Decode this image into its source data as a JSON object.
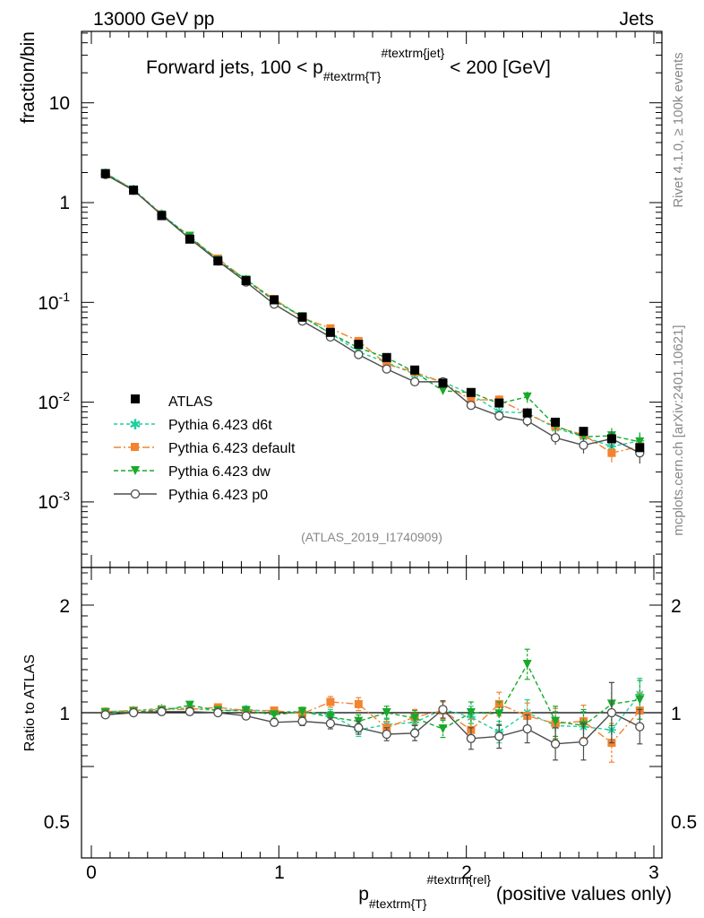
{
  "header": {
    "left": "13000 GeV pp",
    "right": "Jets"
  },
  "plot_title": {
    "pre": "Forward jets, 100 < p",
    "sub": "#textrm{T}",
    "sup": "#textrm{jet}",
    "post": " < 200 [GeV]"
  },
  "side_labels": {
    "rivet": "Rivet 4.1.0, ≥ 100k events",
    "mcplots": "mcplots.cern.ch [arXiv:2401.10621]"
  },
  "analysis_id": "(ATLAS_2019_I1740909)",
  "x_axis": {
    "pre": "p",
    "sub": "#textrm{T}",
    "sup": "#textrm{rel}",
    "post": " (positive values only)",
    "ticks": [
      "0",
      "1",
      "2",
      "3"
    ]
  },
  "main_axis": {
    "ylabel": "fraction/bin",
    "ticks": [
      {
        "base": "10",
        "exp": "-3"
      },
      {
        "base": "10",
        "exp": "-2"
      },
      {
        "base": "10",
        "exp": "-1"
      },
      {
        "base": "1",
        "exp": ""
      },
      {
        "base": "10",
        "exp": ""
      }
    ]
  },
  "ratio_axis": {
    "ylabel": "Ratio to ATLAS",
    "ticks": [
      "0.5",
      "1",
      "2"
    ],
    "ticks_right": [
      "0.5",
      "1",
      "2"
    ]
  },
  "legend": [
    {
      "label": "ATLAS",
      "color": "#000000"
    },
    {
      "label": "Pythia 6.423 d6t",
      "color": "#1fcf9e"
    },
    {
      "label": "Pythia 6.423 default",
      "color": "#f28330"
    },
    {
      "label": "Pythia 6.423 dw",
      "color": "#1aa82a"
    },
    {
      "label": "Pythia 6.423 p0",
      "color": "#4d4d4d"
    }
  ],
  "chart_data": [
    {
      "type": "line",
      "title": "Forward jets, 100 < p_T^jet < 200 [GeV]",
      "xlabel": "p_T^rel (positive values only)",
      "ylabel": "fraction/bin",
      "yscale": "log",
      "xlim": [
        -0.05,
        3.05
      ],
      "ylim": [
        0.00025,
        50
      ],
      "x": [
        0.075,
        0.225,
        0.375,
        0.525,
        0.675,
        0.825,
        0.975,
        1.125,
        1.275,
        1.425,
        1.575,
        1.725,
        1.875,
        2.025,
        2.175,
        2.325,
        2.475,
        2.625,
        2.775,
        2.925
      ],
      "series": [
        {
          "name": "ATLAS",
          "values": [
            1.95,
            1.33,
            0.74,
            0.43,
            0.26,
            0.165,
            0.106,
            0.071,
            0.05,
            0.038,
            0.028,
            0.021,
            0.0155,
            0.0125,
            0.0098,
            0.0078,
            0.0063,
            0.0051,
            0.0043,
            0.0035
          ]
        },
        {
          "name": "Pythia 6.423 d6t",
          "values": [
            1.98,
            1.36,
            0.77,
            0.45,
            0.265,
            0.17,
            0.107,
            0.072,
            0.049,
            0.032,
            0.025,
            0.019,
            0.016,
            0.012,
            0.008,
            0.0078,
            0.0055,
            0.0045,
            0.0036,
            0.0041
          ]
        },
        {
          "name": "Pythia 6.423 default",
          "values": [
            1.97,
            1.35,
            0.76,
            0.44,
            0.275,
            0.168,
            0.108,
            0.07,
            0.055,
            0.041,
            0.024,
            0.02,
            0.0158,
            0.0105,
            0.0106,
            0.0076,
            0.0057,
            0.0047,
            0.0031,
            0.0036
          ]
        },
        {
          "name": "Pythia 6.423 dw",
          "values": [
            1.96,
            1.34,
            0.75,
            0.46,
            0.265,
            0.168,
            0.104,
            0.072,
            0.049,
            0.035,
            0.028,
            0.02,
            0.013,
            0.0125,
            0.0097,
            0.0113,
            0.0058,
            0.0045,
            0.0046,
            0.004
          ]
        },
        {
          "name": "Pythia 6.423 p0",
          "values": [
            1.91,
            1.33,
            0.75,
            0.435,
            0.26,
            0.16,
            0.096,
            0.065,
            0.045,
            0.03,
            0.0215,
            0.016,
            0.016,
            0.0093,
            0.0073,
            0.0065,
            0.0044,
            0.0037,
            0.0043,
            0.0031
          ]
        }
      ]
    },
    {
      "type": "line",
      "title": "",
      "xlabel": "p_T^rel (positive values only)",
      "ylabel": "Ratio to ATLAS",
      "ylim": [
        0.35,
        2.35
      ],
      "x": [
        0.075,
        0.225,
        0.375,
        0.525,
        0.675,
        0.825,
        0.975,
        1.125,
        1.275,
        1.425,
        1.575,
        1.725,
        1.875,
        2.025,
        2.175,
        2.325,
        2.475,
        2.625,
        2.775,
        2.925
      ],
      "series": [
        {
          "name": "Pythia 6.423 d6t",
          "values": [
            1.01,
            1.02,
            1.04,
            1.04,
            1.02,
            1.03,
            1.01,
            1.01,
            0.98,
            0.84,
            0.89,
            0.91,
            1.03,
            0.96,
            0.82,
            1.0,
            0.88,
            0.87,
            0.84,
            1.17
          ],
          "errors": [
            0.02,
            0.02,
            0.02,
            0.02,
            0.02,
            0.03,
            0.03,
            0.04,
            0.05,
            0.06,
            0.06,
            0.06,
            0.08,
            0.1,
            0.1,
            0.12,
            0.13,
            0.14,
            0.15,
            0.15
          ]
        },
        {
          "name": "Pythia 6.423 default",
          "values": [
            1.01,
            1.02,
            1.03,
            1.03,
            1.05,
            1.02,
            1.02,
            0.99,
            1.1,
            1.08,
            0.86,
            0.96,
            1.02,
            0.84,
            1.08,
            0.97,
            0.9,
            0.92,
            0.72,
            1.02
          ],
          "errors": [
            0.02,
            0.02,
            0.02,
            0.02,
            0.02,
            0.03,
            0.03,
            0.04,
            0.05,
            0.06,
            0.06,
            0.07,
            0.08,
            0.1,
            0.11,
            0.12,
            0.14,
            0.15,
            0.18,
            0.16
          ]
        },
        {
          "name": "Pythia 6.423 dw",
          "values": [
            1.0,
            1.01,
            1.02,
            1.07,
            1.02,
            1.02,
            0.98,
            1.01,
            0.96,
            0.92,
            1.0,
            0.95,
            0.85,
            1.0,
            0.99,
            1.45,
            0.92,
            0.88,
            1.08,
            1.12
          ],
          "errors": [
            0.02,
            0.02,
            0.02,
            0.02,
            0.02,
            0.03,
            0.03,
            0.04,
            0.05,
            0.06,
            0.06,
            0.07,
            0.08,
            0.1,
            0.11,
            0.14,
            0.14,
            0.15,
            0.2,
            0.18
          ]
        },
        {
          "name": "Pythia 6.423 p0",
          "values": [
            0.98,
            1.0,
            1.01,
            1.01,
            1.0,
            0.97,
            0.91,
            0.92,
            0.9,
            0.86,
            0.8,
            0.81,
            1.03,
            0.76,
            0.78,
            0.85,
            0.71,
            0.73,
            1.0,
            0.87
          ],
          "errors": [
            0.02,
            0.02,
            0.02,
            0.02,
            0.02,
            0.03,
            0.03,
            0.04,
            0.05,
            0.06,
            0.06,
            0.07,
            0.08,
            0.1,
            0.11,
            0.13,
            0.15,
            0.17,
            0.28,
            0.16
          ]
        }
      ]
    }
  ]
}
